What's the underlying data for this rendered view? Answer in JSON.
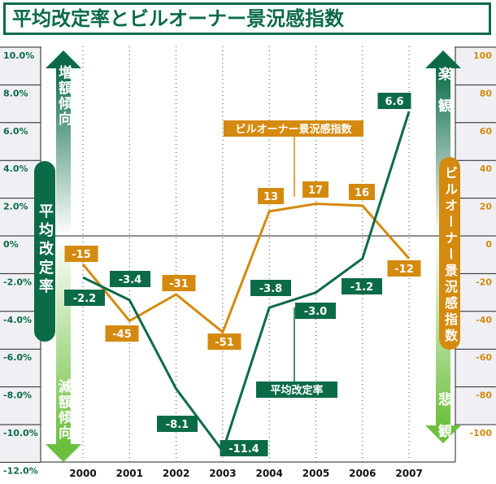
{
  "title": "平均改定率とビルオーナー景況感指数",
  "colors": {
    "rate": "#0b6b47",
    "index": "#d48a0e",
    "panel": "#f0f0f4"
  },
  "left_arrow": {
    "up_label": "増額傾向",
    "down_label": "減額傾向",
    "pill_label": "平均改定率"
  },
  "right_arrow": {
    "up_label": "楽観",
    "down_label": "悲観",
    "pill_label": "ビルオーナー景況感指数"
  },
  "chart_data": {
    "type": "line",
    "categories": [
      "2000",
      "2001",
      "2002",
      "2003",
      "2004",
      "2005",
      "2006",
      "2007"
    ],
    "series": [
      {
        "name": "平均改定率",
        "axis": "left",
        "unit": "%",
        "values": [
          -2.2,
          -3.4,
          -8.1,
          -11.4,
          -3.8,
          -3.0,
          -1.2,
          6.6
        ],
        "labels": [
          "-2.2",
          "-3.4",
          "-8.1",
          "-11.4",
          "-3.8",
          "-3.0",
          "-1.2",
          "6.6"
        ]
      },
      {
        "name": "ビルオーナー景況感指数",
        "axis": "right",
        "values": [
          -15,
          -45,
          -31,
          -51,
          13,
          17,
          16,
          -12
        ],
        "labels": [
          "-15",
          "-45",
          "-31",
          "-51",
          "13",
          "17",
          "16",
          "-12"
        ]
      }
    ],
    "left_axis": {
      "range": [
        -12,
        10
      ],
      "ticks": [
        "10.0%",
        "8.0%",
        "6.0%",
        "4.0%",
        "2.0%",
        "0%",
        "-2.0%",
        "-4.0%",
        "-6.0%",
        "-8.0%",
        "-10.0%",
        "-12.0%"
      ]
    },
    "right_axis": {
      "range": [
        -120,
        100
      ],
      "ticks": [
        "100",
        "80",
        "60",
        "40",
        "20",
        "0",
        "-20",
        "-40",
        "-60",
        "-80",
        "-100"
      ]
    },
    "callouts": {
      "rate": "平均改定率",
      "index": "ビルオーナー景況感指数"
    },
    "grid": "dotted vertical per year"
  }
}
